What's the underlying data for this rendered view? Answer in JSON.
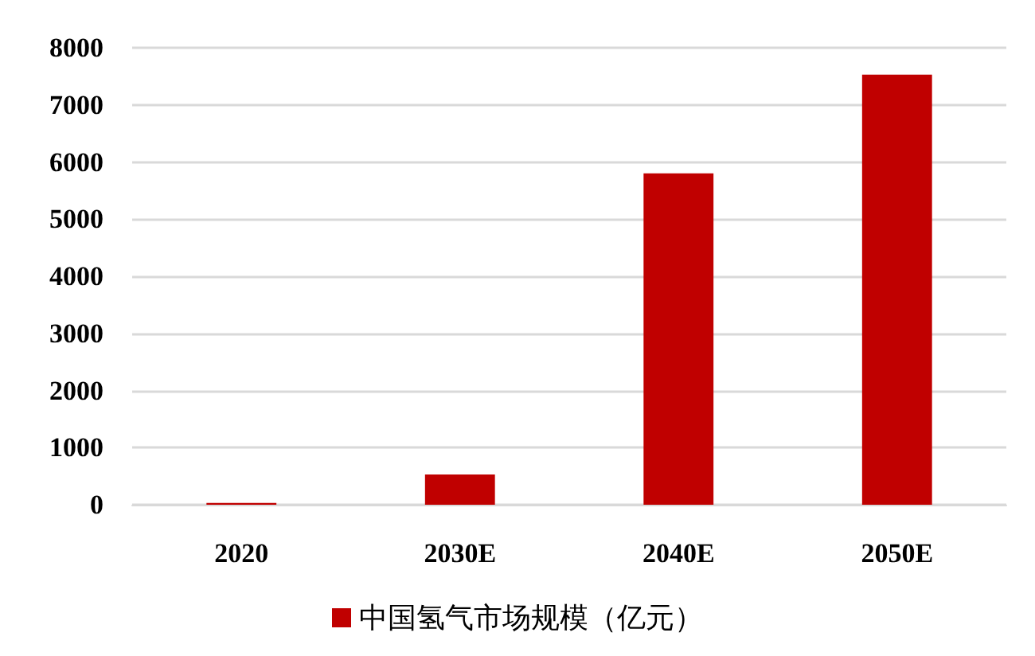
{
  "chart_data": {
    "type": "bar",
    "categories": [
      "2020",
      "2030E",
      "2040E",
      "2050E"
    ],
    "series": [
      {
        "name": "中国氢气市场规模（亿元）",
        "color": "#c00000",
        "values": [
          30,
          530,
          5800,
          7530
        ]
      }
    ],
    "ylim": [
      0,
      8000
    ],
    "yticks": [
      0,
      1000,
      2000,
      3000,
      4000,
      5000,
      6000,
      7000,
      8000
    ],
    "grid": "y",
    "legend": "bottom"
  }
}
